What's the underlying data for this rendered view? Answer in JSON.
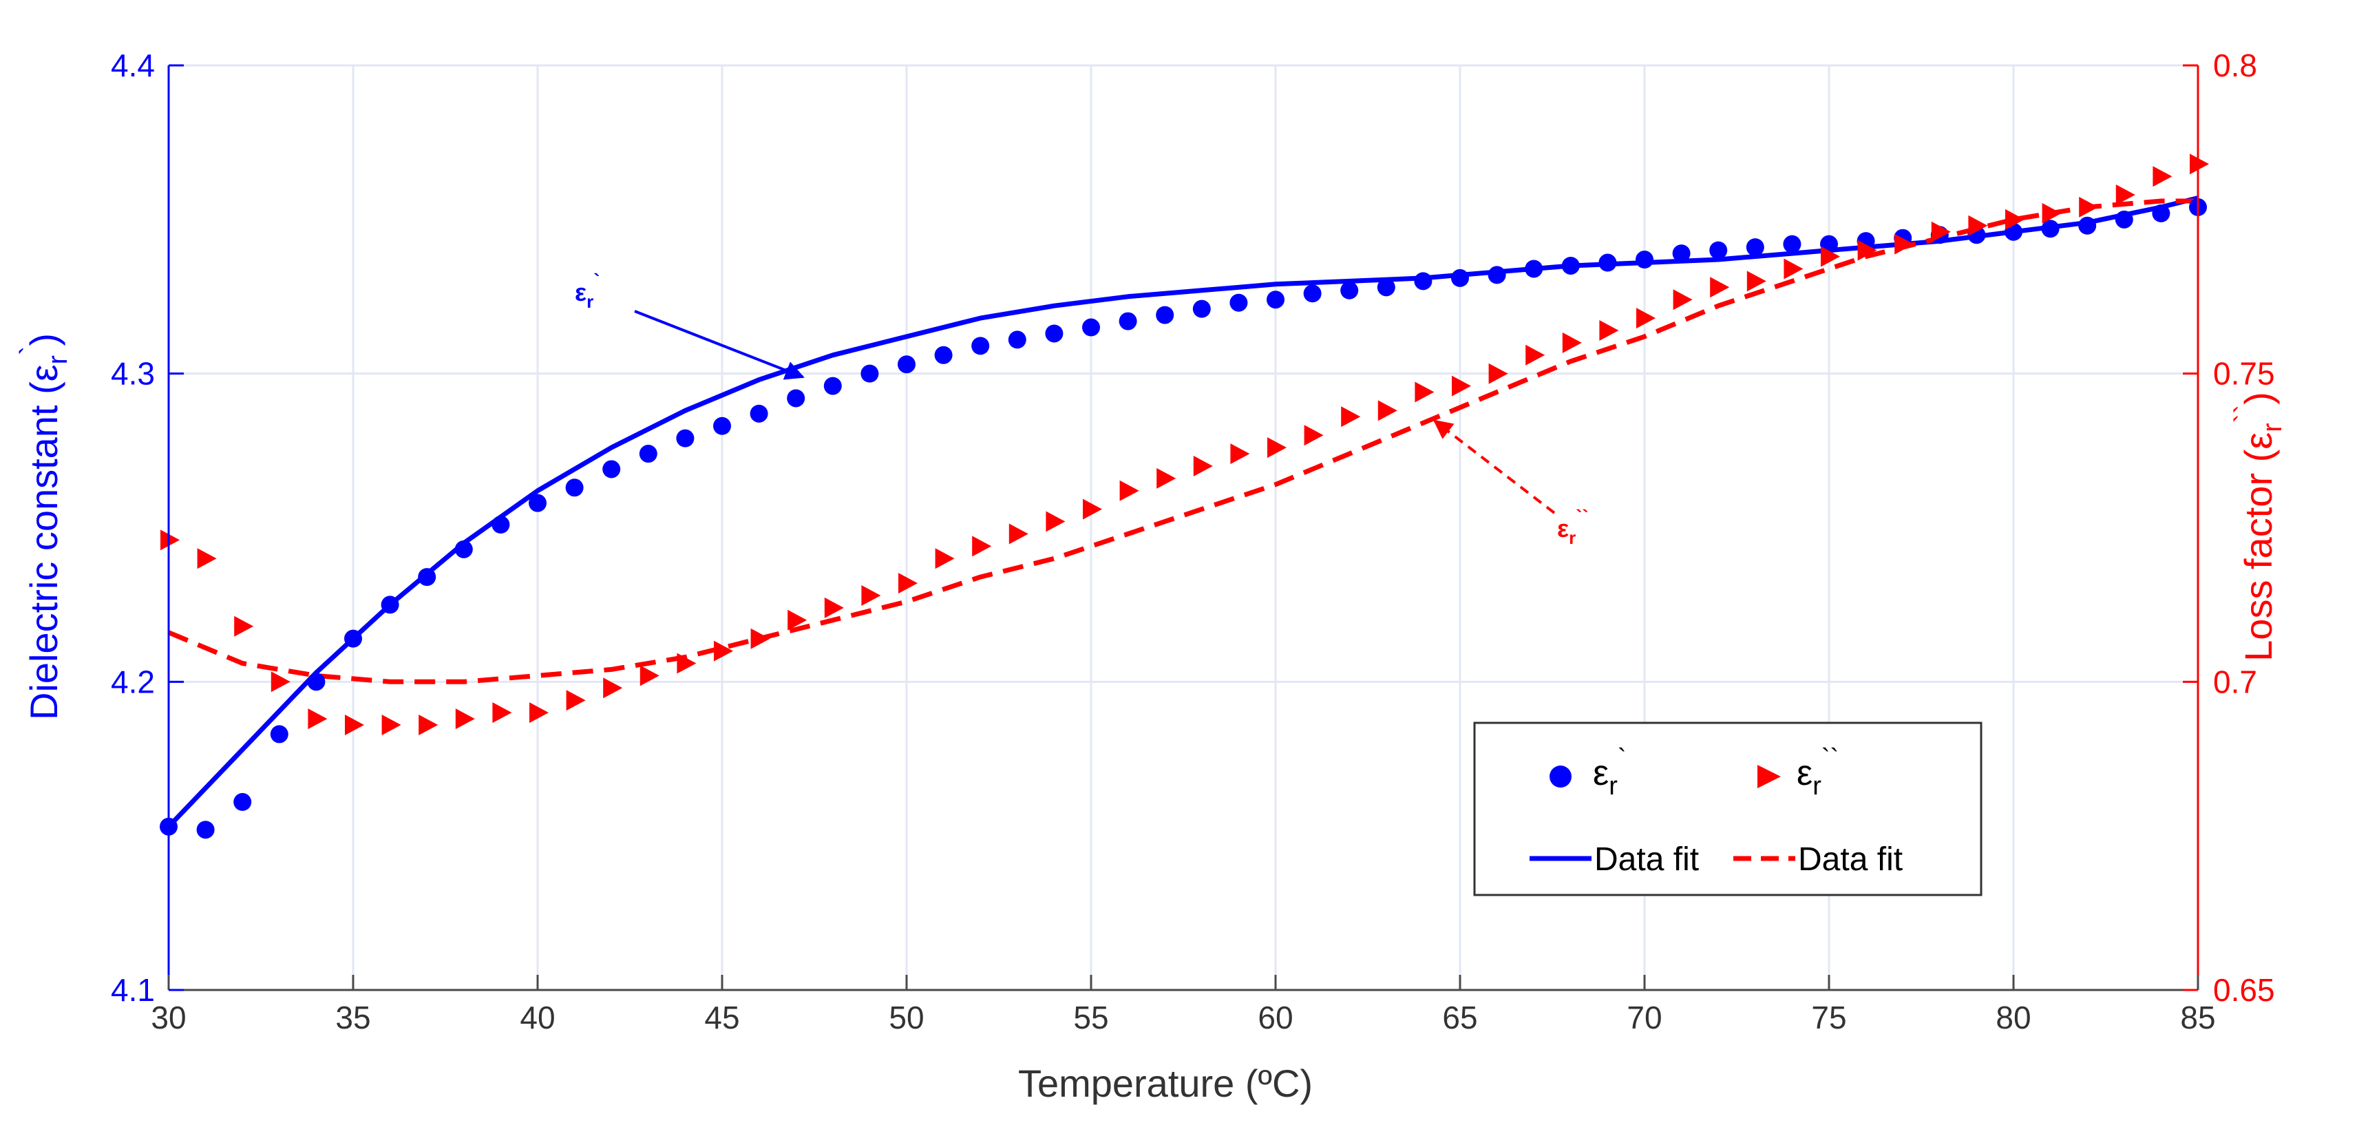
{
  "chart_data": {
    "type": "scatter",
    "xlabel": "Temperature (ºC)",
    "ylabel_left": {
      "main": "Dielectric constant (ε",
      "sub": "r",
      "sup": "`",
      "close": ")"
    },
    "ylabel_right": {
      "main": "Loss factor (ε",
      "sub": "r",
      "sup": "``",
      "close": ")"
    },
    "xlim": [
      30,
      85
    ],
    "ylim_left": [
      4.1,
      4.4
    ],
    "ylim_right": [
      0.65,
      0.8
    ],
    "x_ticks": [
      "30",
      "35",
      "40",
      "45",
      "50",
      "55",
      "60",
      "65",
      "70",
      "75",
      "80",
      "85"
    ],
    "x_tick_values": [
      30,
      35,
      40,
      45,
      50,
      55,
      60,
      65,
      70,
      75,
      80,
      85
    ],
    "y_ticks_left": [
      "4.1",
      "4.2",
      "4.3",
      "4.4"
    ],
    "y_tick_values_left": [
      4.1,
      4.2,
      4.3,
      4.4
    ],
    "y_ticks_right": [
      "0.65",
      "0.7",
      "0.75",
      "0.8"
    ],
    "y_tick_values_right": [
      0.65,
      0.7,
      0.75,
      0.8
    ],
    "grid": true,
    "colors": {
      "left": "#0000ff",
      "right": "#ff0000",
      "grid": "#e3e7f4",
      "axis_text": "#333333"
    },
    "series": [
      {
        "name": "εr`",
        "axis": "left",
        "marker": "circle",
        "color": "#0000ff",
        "x": [
          30,
          31,
          32,
          33,
          34,
          35,
          36,
          37,
          38,
          39,
          40,
          41,
          42,
          43,
          44,
          45,
          46,
          47,
          48,
          49,
          50,
          51,
          52,
          53,
          54,
          55,
          56,
          57,
          58,
          59,
          60,
          61,
          62,
          63,
          64,
          65,
          66,
          67,
          68,
          69,
          70,
          71,
          72,
          73,
          74,
          75,
          76,
          77,
          78,
          79,
          80,
          81,
          82,
          83,
          84,
          85
        ],
        "y": [
          4.153,
          4.152,
          4.161,
          4.183,
          4.2,
          4.214,
          4.225,
          4.234,
          4.243,
          4.251,
          4.258,
          4.263,
          4.269,
          4.274,
          4.279,
          4.283,
          4.287,
          4.292,
          4.296,
          4.3,
          4.303,
          4.306,
          4.309,
          4.311,
          4.313,
          4.315,
          4.317,
          4.319,
          4.321,
          4.323,
          4.324,
          4.326,
          4.327,
          4.328,
          4.33,
          4.331,
          4.332,
          4.334,
          4.335,
          4.336,
          4.337,
          4.339,
          4.34,
          4.341,
          4.342,
          4.342,
          4.343,
          4.344,
          4.345,
          4.345,
          4.346,
          4.347,
          4.348,
          4.35,
          4.352,
          4.354
        ]
      },
      {
        "name": "εr``",
        "axis": "right",
        "marker": "triangle-right",
        "color": "#ff0000",
        "x": [
          30,
          31,
          32,
          33,
          34,
          35,
          36,
          37,
          38,
          39,
          40,
          41,
          42,
          43,
          44,
          45,
          46,
          47,
          48,
          49,
          50,
          51,
          52,
          53,
          54,
          55,
          56,
          57,
          58,
          59,
          60,
          61,
          62,
          63,
          64,
          65,
          66,
          67,
          68,
          69,
          70,
          71,
          72,
          73,
          74,
          75,
          76,
          77,
          78,
          79,
          80,
          81,
          82,
          83,
          84,
          85
        ],
        "y": [
          0.723,
          0.72,
          0.709,
          0.7,
          0.694,
          0.693,
          0.693,
          0.693,
          0.694,
          0.695,
          0.695,
          0.697,
          0.699,
          0.701,
          0.703,
          0.705,
          0.707,
          0.71,
          0.712,
          0.714,
          0.716,
          0.72,
          0.722,
          0.724,
          0.726,
          0.728,
          0.731,
          0.733,
          0.735,
          0.737,
          0.738,
          0.74,
          0.743,
          0.744,
          0.747,
          0.748,
          0.75,
          0.753,
          0.755,
          0.757,
          0.759,
          0.762,
          0.764,
          0.765,
          0.767,
          0.769,
          0.77,
          0.771,
          0.773,
          0.774,
          0.775,
          0.776,
          0.777,
          0.779,
          0.782,
          0.784
        ]
      },
      {
        "name": "Data fit",
        "axis": "left",
        "line": "solid",
        "color": "#0000ff",
        "x": [
          30,
          32,
          34,
          36,
          38,
          40,
          42,
          44,
          46,
          48,
          50,
          52,
          54,
          56,
          58,
          60,
          62,
          64,
          66,
          68,
          70,
          72,
          74,
          76,
          78,
          80,
          82,
          84,
          85
        ],
        "y": [
          4.153,
          4.178,
          4.203,
          4.225,
          4.245,
          4.262,
          4.276,
          4.288,
          4.298,
          4.306,
          4.312,
          4.318,
          4.322,
          4.325,
          4.327,
          4.329,
          4.33,
          4.331,
          4.333,
          4.335,
          4.336,
          4.337,
          4.339,
          4.341,
          4.343,
          4.346,
          4.349,
          4.354,
          4.357
        ]
      },
      {
        "name": "Data fit",
        "axis": "right",
        "line": "dashed",
        "color": "#ff0000",
        "x": [
          30,
          32,
          34,
          36,
          38,
          40,
          42,
          44,
          46,
          48,
          50,
          52,
          54,
          56,
          58,
          60,
          62,
          64,
          66,
          68,
          70,
          72,
          74,
          76,
          78,
          80,
          82,
          84,
          85
        ],
        "y": [
          0.708,
          0.703,
          0.701,
          0.7,
          0.7,
          0.701,
          0.702,
          0.704,
          0.707,
          0.71,
          0.713,
          0.717,
          0.72,
          0.724,
          0.728,
          0.732,
          0.737,
          0.742,
          0.747,
          0.752,
          0.756,
          0.761,
          0.765,
          0.769,
          0.772,
          0.775,
          0.777,
          0.778,
          0.778
        ]
      }
    ],
    "legend": {
      "placement": "bottom-right",
      "entries": [
        {
          "symbol": "circle",
          "main": "ε",
          "sub": "r",
          "sup": "`"
        },
        {
          "symbol": "triangle-right",
          "main": "ε",
          "sub": "r",
          "sup": "``"
        },
        {
          "symbol": "solid-line",
          "text": "Data fit"
        },
        {
          "symbol": "dashed-line",
          "text": "Data fit"
        }
      ]
    },
    "annotations": [
      {
        "main": "ε",
        "sub": "r",
        "sup": "`",
        "color": "#0000ff",
        "arrow": "solid",
        "arrow_to": {
          "x": 47.3,
          "y": 4.298,
          "axis": "left"
        }
      },
      {
        "main": "ε",
        "sub": "r",
        "sup": "``",
        "color": "#ff0000",
        "arrow": "dashed",
        "arrow_to": {
          "x": 64.2,
          "y": 0.743,
          "axis": "right"
        }
      }
    ]
  }
}
